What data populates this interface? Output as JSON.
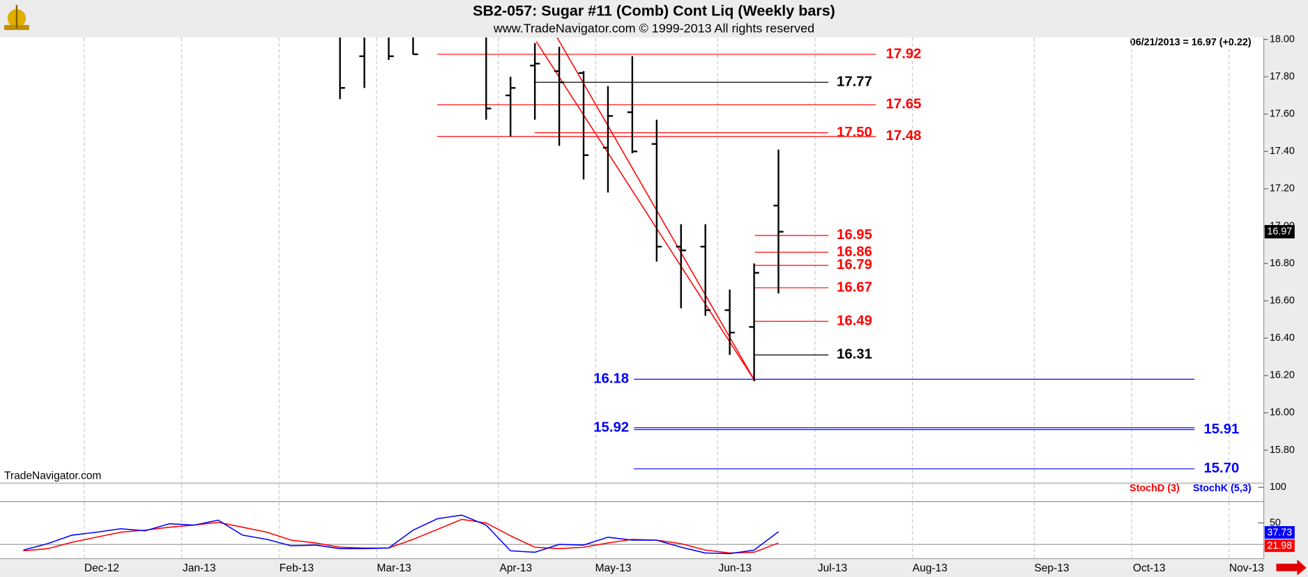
{
  "header": {
    "title": "SB2-057:  Sugar #11 (Comb) Cont Liq  (Weekly bars)",
    "subtitle": "www.TradeNavigator.com © 1999-2013 All rights reserved",
    "quote": "06/21/2013 = 16.97 (+0.22)",
    "watermark": "TradeNavigator.com"
  },
  "chart_data": [
    {
      "type": "ohlc",
      "color": "#000000",
      "ylim": [
        15.63,
        18.01
      ],
      "yticks": [
        {
          "value": 18,
          "label": "18.00"
        },
        {
          "value": 17.8,
          "label": "17.80"
        },
        {
          "value": 17.6,
          "label": "17.60"
        },
        {
          "value": 17.4,
          "label": "17.40"
        },
        {
          "value": 17.2,
          "label": "17.20"
        },
        {
          "value": 17,
          "label": "17.00"
        },
        {
          "value": 16.8,
          "label": "16.80"
        },
        {
          "value": 16.6,
          "label": "16.60"
        },
        {
          "value": 16.4,
          "label": "16.40"
        },
        {
          "value": 16.2,
          "label": "16.20"
        },
        {
          "value": 16,
          "label": "16.00"
        },
        {
          "value": 15.8,
          "label": "15.80"
        }
      ],
      "open": [
        null,
        null,
        null,
        null,
        null,
        null,
        null,
        null,
        null,
        null,
        null,
        null,
        null,
        null,
        17.91,
        null,
        null,
        null,
        null,
        null,
        17.7,
        17.86,
        17.83,
        17.82,
        17.42,
        17.61,
        17.44,
        16.89,
        16.89,
        16.55,
        16.46,
        17.11,
        null,
        null,
        null,
        null,
        null,
        null,
        null,
        null,
        null,
        null,
        null,
        null,
        null,
        null,
        null,
        null,
        null,
        null,
        null
      ],
      "high": [
        null,
        null,
        null,
        null,
        null,
        null,
        null,
        null,
        null,
        null,
        null,
        null,
        null,
        18.05,
        18.05,
        18.05,
        18.05,
        null,
        null,
        18.05,
        17.8,
        17.98,
        17.96,
        17.83,
        17.75,
        17.91,
        17.57,
        17.01,
        17.01,
        16.66,
        16.8,
        17.41,
        null,
        null,
        null,
        null,
        null,
        null,
        null,
        null,
        null,
        null,
        null,
        null,
        null,
        null,
        null,
        null,
        null,
        null,
        null
      ],
      "low": [
        null,
        null,
        null,
        null,
        null,
        null,
        null,
        null,
        null,
        null,
        null,
        null,
        null,
        17.68,
        17.74,
        17.89,
        17.92,
        null,
        null,
        17.57,
        17.48,
        17.57,
        17.43,
        17.25,
        17.18,
        17.39,
        16.81,
        16.56,
        16.52,
        16.31,
        16.17,
        16.64,
        null,
        null,
        null,
        null,
        null,
        null,
        null,
        null,
        null,
        null,
        null,
        null,
        null,
        null,
        null,
        null,
        null,
        null,
        null
      ],
      "close": [
        null,
        null,
        null,
        null,
        null,
        null,
        null,
        null,
        null,
        null,
        null,
        null,
        null,
        17.74,
        null,
        17.91,
        17.92,
        null,
        null,
        17.63,
        17.74,
        17.87,
        17.77,
        17.38,
        17.59,
        17.4,
        16.89,
        16.87,
        16.55,
        16.43,
        16.75,
        16.97,
        null,
        null,
        null,
        null,
        null,
        null,
        null,
        null,
        null,
        null,
        null,
        null,
        null,
        null,
        null,
        null,
        null,
        null,
        null
      ],
      "levels": [
        {
          "value": 17.92,
          "color": "#ff0000"
        },
        {
          "value": 17.77,
          "color": "#000000"
        },
        {
          "value": 17.65,
          "color": "#ff0000"
        },
        {
          "value": 17.5,
          "label": "17.50",
          "color": "#ff0000"
        },
        {
          "value": 17.48,
          "color": "#ff0000"
        },
        {
          "value": 16.95,
          "color": "#ff0000"
        },
        {
          "value": 16.86,
          "color": "#ff0000"
        },
        {
          "value": 16.79,
          "color": "#ff0000"
        },
        {
          "value": 16.67,
          "color": "#ff0000"
        },
        {
          "value": 16.49,
          "color": "#ff0000"
        },
        {
          "value": 16.31,
          "color": "#000000"
        },
        {
          "value": 16.18,
          "color": "#0000ff"
        },
        {
          "value": 15.92,
          "color": "#0000ff"
        },
        {
          "value": 15.91,
          "color": "#0000ff"
        },
        {
          "value": 15.7,
          "label": "15.70",
          "color": "#0000ff"
        }
      ]
    },
    {
      "type": "line",
      "categories": [
        null,
        null,
        null,
        "Dec-12",
        null,
        null,
        null,
        "Jan-13",
        null,
        null,
        null,
        "Feb-13",
        null,
        null,
        null,
        "Mar-13",
        null,
        null,
        null,
        null,
        "Apr-13",
        null,
        null,
        null,
        "May-13",
        null,
        null,
        null,
        null,
        "Jun-13",
        null,
        null,
        null,
        "Jul-13",
        null,
        null,
        null,
        "Aug-13",
        null,
        null,
        null,
        null,
        "Sep-13",
        null,
        null,
        null,
        "Oct-13",
        null,
        null,
        null,
        "Nov-13"
      ],
      "ylim": [
        0,
        104
      ],
      "yticks": [
        50,
        100
      ],
      "levels": [
        20,
        80
      ],
      "series": [
        {
          "name": "StochD (3)",
          "color": "#ff0000",
          "values": [
            11,
            14,
            23,
            30,
            37,
            40,
            44,
            47,
            51,
            44,
            37,
            26,
            22,
            16,
            15,
            15,
            27,
            41,
            55,
            50,
            32,
            16,
            14,
            16,
            22,
            27,
            26,
            21,
            12,
            8,
            9,
            21.98,
            null,
            null,
            null,
            null,
            null,
            null,
            null,
            null,
            null,
            null,
            null,
            null,
            null,
            null,
            null,
            null,
            null,
            null,
            null
          ]
        },
        {
          "name": "StochK (5,3)",
          "color": "#0000ff",
          "values": [
            12,
            21,
            33,
            37,
            42,
            39,
            49,
            47,
            54,
            33,
            27,
            18,
            19,
            14,
            14,
            15,
            40,
            56,
            61,
            47,
            11,
            9,
            20,
            19,
            30,
            26,
            26,
            16,
            8,
            7,
            12,
            37.73,
            null,
            null,
            null,
            null,
            null,
            null,
            null,
            null,
            null,
            null,
            null,
            null,
            null,
            null,
            null,
            null,
            null,
            null,
            null
          ]
        }
      ]
    }
  ]
}
